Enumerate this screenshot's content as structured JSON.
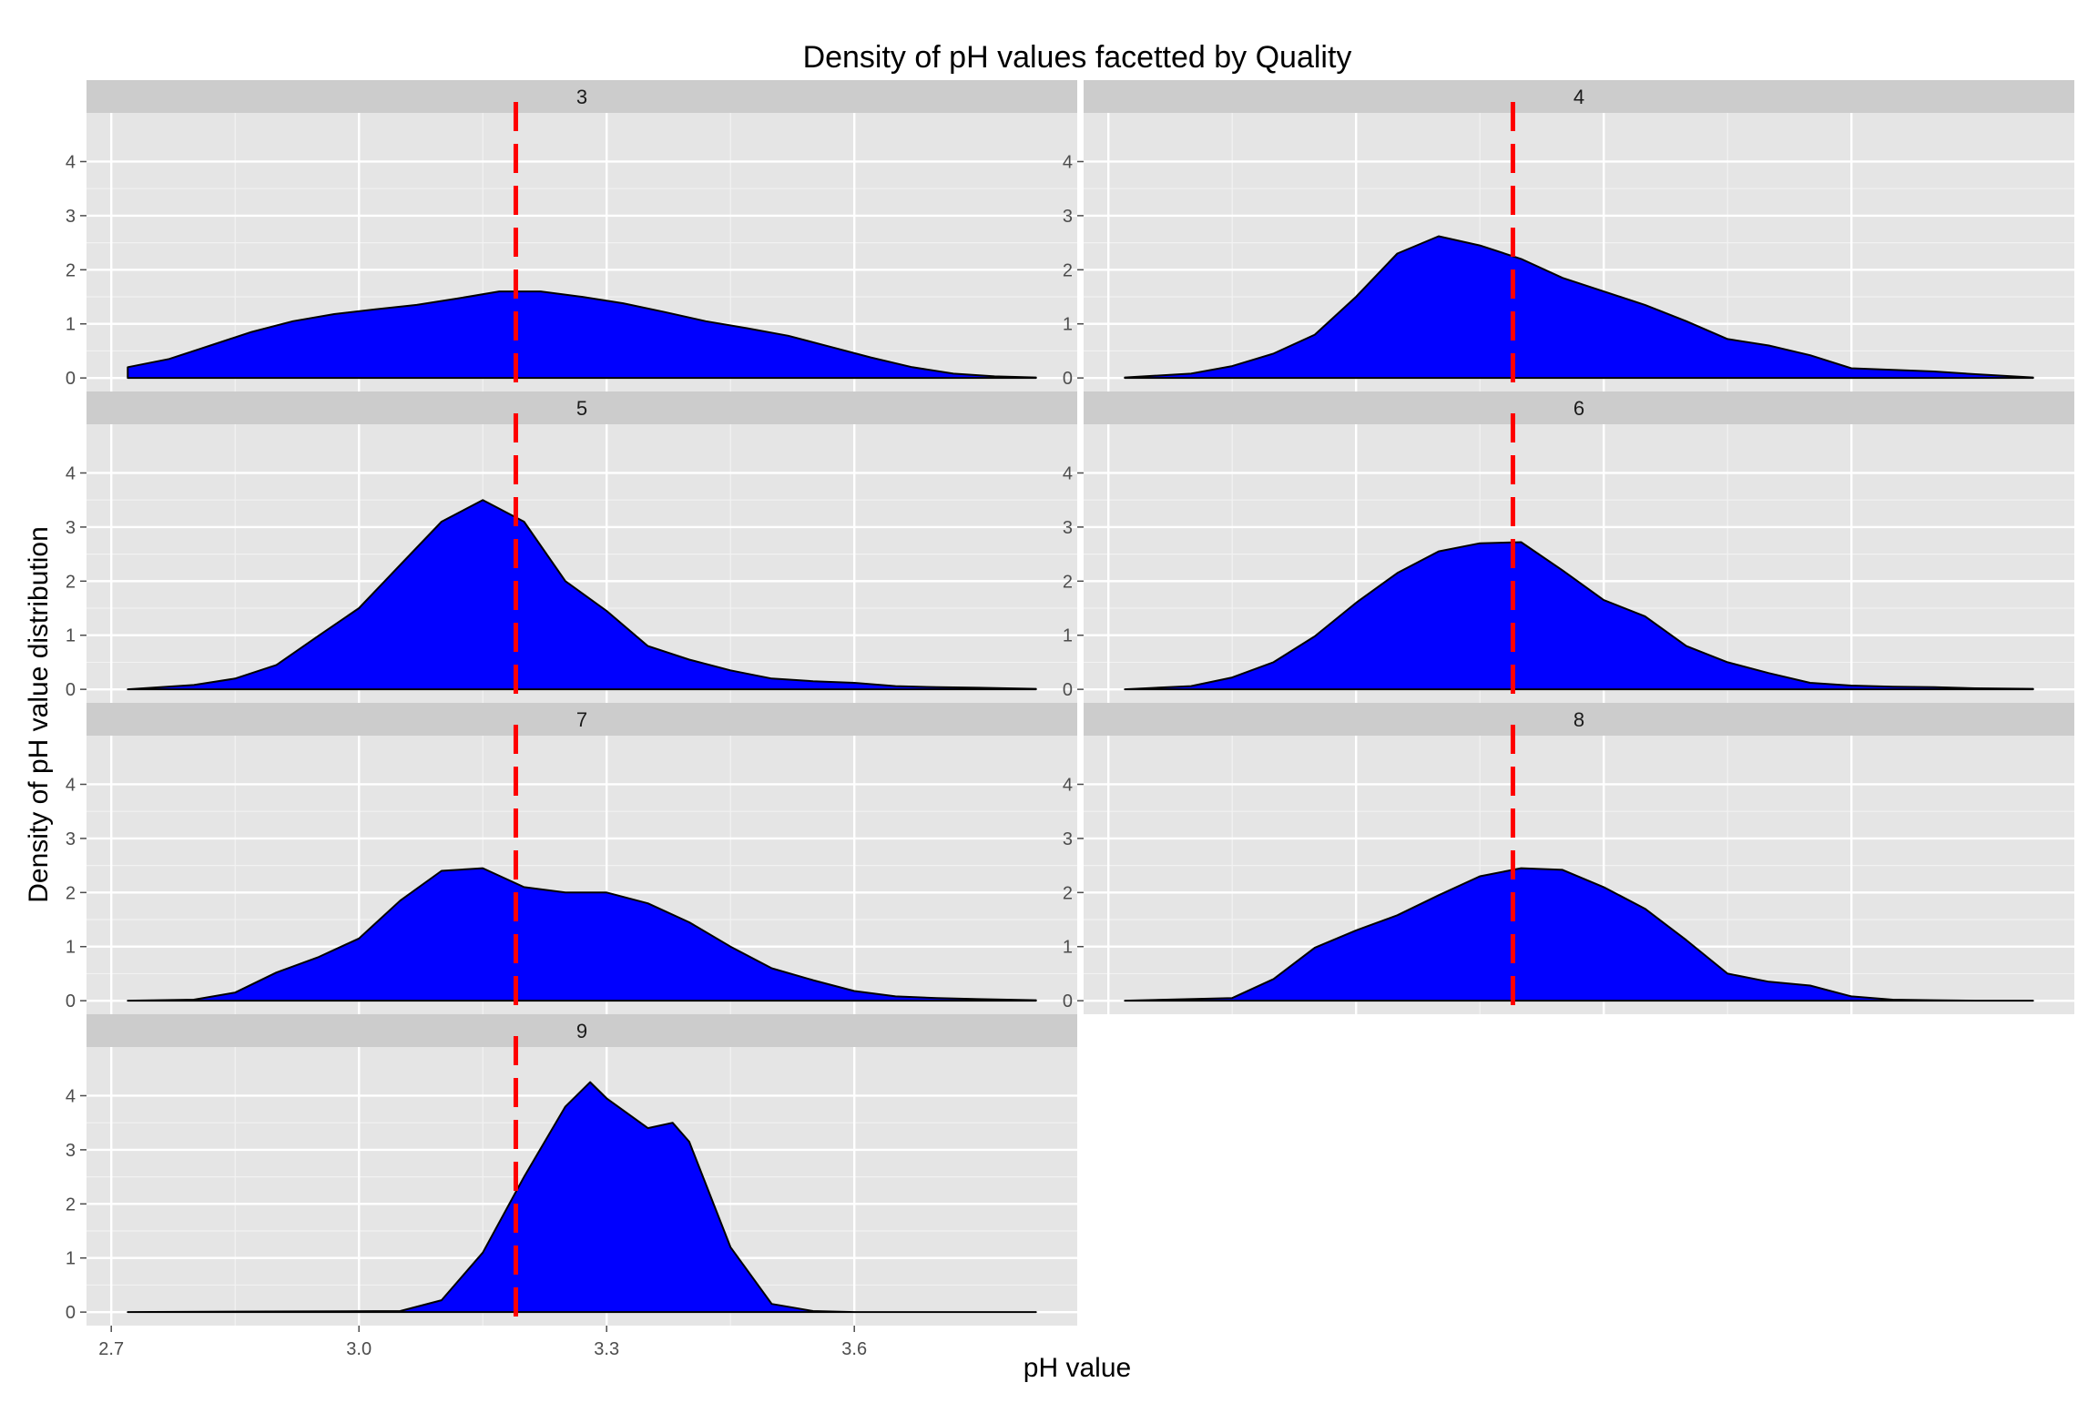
{
  "chart_data": {
    "type": "area",
    "title": "Density of pH values facetted by Quality",
    "xlabel": "pH value",
    "ylabel": "Density of pH value distribution",
    "xlim": [
      2.67,
      3.87
    ],
    "ylim": [
      -0.25,
      4.9
    ],
    "x_ticks": [
      2.7,
      3.0,
      3.3,
      3.6
    ],
    "x_tick_labels": [
      "2.7",
      "3.0",
      "3.3",
      "3.6"
    ],
    "y_ticks": [
      0,
      1,
      2,
      3,
      4
    ],
    "y_tick_labels": [
      "0",
      "1",
      "2",
      "3",
      "4"
    ],
    "grid": true,
    "fill_color": "#0000ff",
    "outline_color": "#000000",
    "reference_line": {
      "x": 3.19,
      "color": "#ff0000",
      "style": "dashed"
    },
    "facet_layout": {
      "columns": 2,
      "rows": 4
    },
    "facets": [
      {
        "label": "3",
        "x": [
          2.72,
          2.77,
          2.82,
          2.87,
          2.92,
          2.97,
          3.02,
          3.07,
          3.12,
          3.17,
          3.22,
          3.27,
          3.32,
          3.37,
          3.42,
          3.47,
          3.52,
          3.57,
          3.62,
          3.67,
          3.72,
          3.77,
          3.82
        ],
        "y": [
          0.2,
          0.35,
          0.6,
          0.85,
          1.05,
          1.18,
          1.27,
          1.35,
          1.47,
          1.6,
          1.6,
          1.5,
          1.38,
          1.22,
          1.05,
          0.92,
          0.78,
          0.58,
          0.38,
          0.2,
          0.08,
          0.03,
          0.01
        ]
      },
      {
        "label": "4",
        "x": [
          2.72,
          2.8,
          2.85,
          2.9,
          2.95,
          3.0,
          3.05,
          3.1,
          3.15,
          3.2,
          3.25,
          3.3,
          3.35,
          3.4,
          3.45,
          3.5,
          3.55,
          3.6,
          3.65,
          3.7,
          3.75,
          3.82
        ],
        "y": [
          0.01,
          0.08,
          0.22,
          0.45,
          0.8,
          1.5,
          2.3,
          2.62,
          2.45,
          2.2,
          1.85,
          1.6,
          1.35,
          1.05,
          0.72,
          0.6,
          0.42,
          0.18,
          0.15,
          0.12,
          0.07,
          0.01
        ]
      },
      {
        "label": "5",
        "x": [
          2.72,
          2.8,
          2.85,
          2.9,
          2.95,
          3.0,
          3.05,
          3.1,
          3.15,
          3.2,
          3.25,
          3.3,
          3.35,
          3.4,
          3.45,
          3.5,
          3.55,
          3.6,
          3.65,
          3.7,
          3.75,
          3.82
        ],
        "y": [
          0.0,
          0.08,
          0.2,
          0.45,
          0.98,
          1.5,
          2.3,
          3.1,
          3.5,
          3.1,
          2.0,
          1.45,
          0.8,
          0.55,
          0.35,
          0.2,
          0.15,
          0.12,
          0.06,
          0.04,
          0.03,
          0.01
        ]
      },
      {
        "label": "6",
        "x": [
          2.72,
          2.8,
          2.85,
          2.9,
          2.95,
          3.0,
          3.05,
          3.1,
          3.15,
          3.2,
          3.25,
          3.3,
          3.35,
          3.4,
          3.45,
          3.5,
          3.55,
          3.6,
          3.65,
          3.7,
          3.75,
          3.82
        ],
        "y": [
          0.0,
          0.06,
          0.22,
          0.5,
          0.98,
          1.6,
          2.15,
          2.55,
          2.7,
          2.72,
          2.2,
          1.65,
          1.35,
          0.8,
          0.5,
          0.3,
          0.12,
          0.07,
          0.05,
          0.04,
          0.02,
          0.01
        ]
      },
      {
        "label": "7",
        "x": [
          2.72,
          2.8,
          2.85,
          2.9,
          2.95,
          3.0,
          3.05,
          3.1,
          3.15,
          3.2,
          3.25,
          3.3,
          3.35,
          3.4,
          3.45,
          3.5,
          3.55,
          3.6,
          3.65,
          3.7,
          3.75,
          3.82
        ],
        "y": [
          0.0,
          0.02,
          0.15,
          0.52,
          0.8,
          1.15,
          1.85,
          2.4,
          2.45,
          2.1,
          2.0,
          2.0,
          1.8,
          1.45,
          1.0,
          0.6,
          0.38,
          0.18,
          0.08,
          0.05,
          0.03,
          0.01
        ]
      },
      {
        "label": "8",
        "x": [
          2.72,
          2.85,
          2.9,
          2.95,
          3.0,
          3.05,
          3.1,
          3.15,
          3.2,
          3.25,
          3.3,
          3.35,
          3.4,
          3.45,
          3.5,
          3.55,
          3.6,
          3.65,
          3.7,
          3.75,
          3.82
        ],
        "y": [
          0.0,
          0.05,
          0.4,
          0.98,
          1.3,
          1.58,
          1.95,
          2.3,
          2.45,
          2.42,
          2.1,
          1.7,
          1.12,
          0.5,
          0.35,
          0.28,
          0.08,
          0.02,
          0.01,
          0.0,
          0.0
        ]
      },
      {
        "label": "9",
        "x": [
          2.72,
          3.05,
          3.1,
          3.15,
          3.2,
          3.25,
          3.28,
          3.3,
          3.35,
          3.38,
          3.4,
          3.45,
          3.5,
          3.55,
          3.6,
          3.82
        ],
        "y": [
          0.0,
          0.02,
          0.22,
          1.1,
          2.5,
          3.8,
          4.25,
          3.95,
          3.4,
          3.5,
          3.15,
          1.2,
          0.15,
          0.02,
          0.0,
          0.0
        ]
      }
    ]
  }
}
